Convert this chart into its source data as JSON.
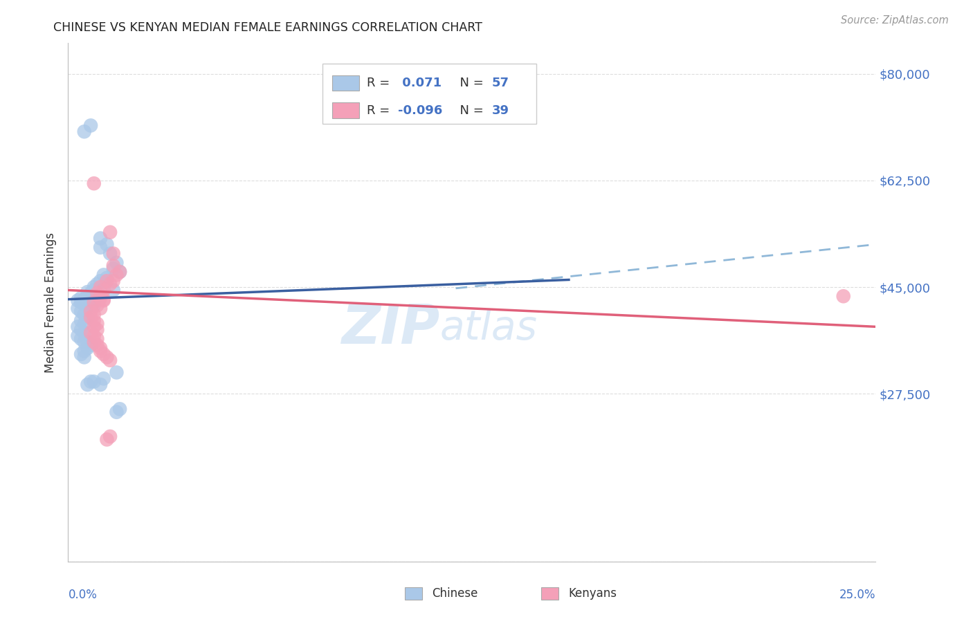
{
  "title": "CHINESE VS KENYAN MEDIAN FEMALE EARNINGS CORRELATION CHART",
  "source": "Source: ZipAtlas.com",
  "ylabel": "Median Female Earnings",
  "yticks": [
    0,
    27500,
    45000,
    62500,
    80000
  ],
  "ytick_labels": [
    "",
    "$27,500",
    "$45,000",
    "$62,500",
    "$80,000"
  ],
  "xlim": [
    0,
    0.25
  ],
  "ylim": [
    0,
    85000
  ],
  "watermark_zip": "ZIP",
  "watermark_atlas": "atlas",
  "chinese_color": "#aac8e8",
  "kenyan_color": "#f4a0b8",
  "chinese_line_color": "#3a5fa0",
  "kenyan_line_color": "#e0607a",
  "dashed_line_color": "#90b8d8",
  "title_color": "#222222",
  "value_color": "#4472c4",
  "label_color": "#333333",
  "background_color": "#ffffff",
  "grid_color": "#dddddd",
  "legend_r1_label": "R = ",
  "legend_r1_val": " 0.071",
  "legend_n1_label": "N = ",
  "legend_n1_val": "57",
  "legend_r2_label": "R = ",
  "legend_r2_val": "-0.096",
  "legend_n2_label": "N = ",
  "legend_n2_val": "39",
  "chinese_scatter": [
    [
      0.005,
      70500
    ],
    [
      0.007,
      71500
    ],
    [
      0.01,
      51500
    ],
    [
      0.012,
      52000
    ],
    [
      0.013,
      50500
    ],
    [
      0.01,
      53000
    ],
    [
      0.014,
      48000
    ],
    [
      0.015,
      49000
    ],
    [
      0.016,
      47500
    ],
    [
      0.01,
      46000
    ],
    [
      0.011,
      47000
    ],
    [
      0.012,
      46500
    ],
    [
      0.008,
      45000
    ],
    [
      0.009,
      45500
    ],
    [
      0.01,
      44500
    ],
    [
      0.007,
      44000
    ],
    [
      0.008,
      44500
    ],
    [
      0.009,
      43500
    ],
    [
      0.006,
      44200
    ],
    [
      0.007,
      43800
    ],
    [
      0.008,
      43200
    ],
    [
      0.005,
      43000
    ],
    [
      0.006,
      43500
    ],
    [
      0.004,
      43200
    ],
    [
      0.003,
      42800
    ],
    [
      0.004,
      42500
    ],
    [
      0.005,
      42200
    ],
    [
      0.006,
      42000
    ],
    [
      0.007,
      42500
    ],
    [
      0.008,
      42000
    ],
    [
      0.003,
      41500
    ],
    [
      0.004,
      41000
    ],
    [
      0.005,
      40500
    ],
    [
      0.006,
      40000
    ],
    [
      0.004,
      39500
    ],
    [
      0.005,
      39000
    ],
    [
      0.003,
      38500
    ],
    [
      0.004,
      38000
    ],
    [
      0.005,
      37500
    ],
    [
      0.003,
      37000
    ],
    [
      0.004,
      36500
    ],
    [
      0.005,
      36000
    ],
    [
      0.006,
      36000
    ],
    [
      0.007,
      35500
    ],
    [
      0.006,
      35000
    ],
    [
      0.005,
      34500
    ],
    [
      0.004,
      34000
    ],
    [
      0.005,
      33500
    ],
    [
      0.006,
      29000
    ],
    [
      0.007,
      29500
    ],
    [
      0.008,
      29500
    ],
    [
      0.01,
      29000
    ],
    [
      0.011,
      30000
    ],
    [
      0.014,
      44500
    ],
    [
      0.015,
      31000
    ],
    [
      0.015,
      24500
    ],
    [
      0.016,
      25000
    ]
  ],
  "kenyan_scatter": [
    [
      0.008,
      62000
    ],
    [
      0.013,
      54000
    ],
    [
      0.014,
      50500
    ],
    [
      0.014,
      48500
    ],
    [
      0.015,
      47000
    ],
    [
      0.016,
      47500
    ],
    [
      0.012,
      46000
    ],
    [
      0.013,
      45500
    ],
    [
      0.014,
      46000
    ],
    [
      0.01,
      45000
    ],
    [
      0.011,
      44500
    ],
    [
      0.009,
      44000
    ],
    [
      0.01,
      43500
    ],
    [
      0.011,
      43000
    ],
    [
      0.008,
      42500
    ],
    [
      0.009,
      42000
    ],
    [
      0.01,
      41500
    ],
    [
      0.007,
      41000
    ],
    [
      0.008,
      40500
    ],
    [
      0.007,
      40000
    ],
    [
      0.008,
      39500
    ],
    [
      0.009,
      39000
    ],
    [
      0.008,
      38500
    ],
    [
      0.009,
      38000
    ],
    [
      0.007,
      37500
    ],
    [
      0.008,
      37000
    ],
    [
      0.009,
      36500
    ],
    [
      0.008,
      36000
    ],
    [
      0.009,
      35500
    ],
    [
      0.01,
      35000
    ],
    [
      0.01,
      34500
    ],
    [
      0.011,
      34000
    ],
    [
      0.012,
      33500
    ],
    [
      0.013,
      33000
    ],
    [
      0.012,
      20000
    ],
    [
      0.013,
      20500
    ],
    [
      0.01,
      43200
    ],
    [
      0.011,
      42800
    ],
    [
      0.24,
      43500
    ]
  ],
  "chinese_line": [
    [
      0.0,
      43000
    ],
    [
      0.155,
      46200
    ]
  ],
  "chinese_line_dashed": [
    [
      0.155,
      46200
    ],
    [
      0.25,
      49000
    ]
  ],
  "kenyan_line": [
    [
      0.0,
      44500
    ],
    [
      0.25,
      38500
    ]
  ],
  "dashed_line": [
    [
      0.12,
      44800
    ],
    [
      0.25,
      52000
    ]
  ]
}
